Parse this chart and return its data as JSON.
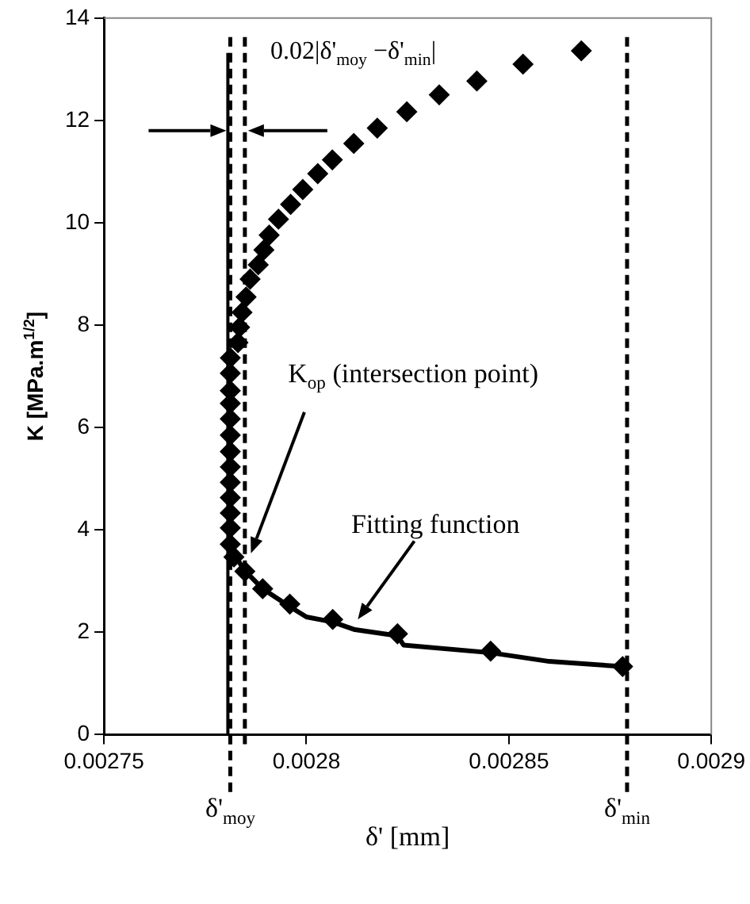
{
  "chart_data": {
    "type": "scatter",
    "xlabel": "δ' [mm]",
    "ylabel": "K [MPa.m$^{1/2}$]",
    "xlim": [
      0.00275,
      0.0029
    ],
    "xticks": [
      0.00275,
      0.0028,
      0.00285,
      0.0029
    ],
    "ylim": [
      0,
      14
    ],
    "yticks": [
      0,
      2,
      4,
      6,
      8,
      10,
      12,
      14
    ],
    "grid": false,
    "legend": false,
    "series": [
      {
        "marker": "diamond",
        "color": "#000000",
        "x": [
          0.0028679,
          0.0028535,
          0.0028421,
          0.0028328,
          0.0028248,
          0.0028175,
          0.0028117,
          0.0028064,
          0.0028028,
          0.0027991,
          0.0027961,
          0.0027931,
          0.0027908,
          0.0027895,
          0.0027881,
          0.0027861,
          0.0027851,
          0.0027841,
          0.0027835,
          0.0027831,
          0.0027812,
          0.0027812,
          0.0027812,
          0.0027812,
          0.0027812,
          0.0027812,
          0.0027812,
          0.0027812,
          0.0027812,
          0.0027812,
          0.0027812,
          0.0027812,
          0.0027812,
          0.0027821,
          0.0027848,
          0.0027892,
          0.0027959,
          0.0028065,
          0.0028225,
          0.0028455,
          0.0028781
        ],
        "values": [
          13.36,
          13.1,
          12.77,
          12.5,
          12.17,
          11.85,
          11.55,
          11.23,
          10.96,
          10.65,
          10.36,
          10.07,
          9.76,
          9.47,
          9.18,
          8.9,
          8.55,
          8.25,
          7.96,
          7.66,
          7.36,
          7.06,
          6.72,
          6.47,
          6.17,
          5.85,
          5.53,
          5.23,
          4.93,
          4.63,
          4.33,
          4.04,
          3.72,
          3.47,
          3.19,
          2.85,
          2.55,
          2.25,
          1.97,
          1.63,
          1.33
        ]
      },
      {
        "type": "line",
        "marker": "none",
        "line_style": "solid",
        "color": "#000000",
        "x": [
          0.0027815,
          0.0027848,
          0.0027892,
          0.0027959,
          0.0028,
          0.0028065,
          0.002812,
          0.0028225,
          0.002824,
          0.0028455,
          0.00286,
          0.0028781
        ],
        "values": [
          3.6,
          3.2,
          2.85,
          2.5,
          2.3,
          2.2,
          2.05,
          1.93,
          1.75,
          1.6,
          1.43,
          1.33
        ]
      }
    ],
    "ref_lines": [
      {
        "axis": "x",
        "value": 0.0027812,
        "label": "δ'$_{moy}$",
        "line_style": "dashed",
        "color": "#000000"
      },
      {
        "axis": "x",
        "value": 0.0027848,
        "line_style": "dashed",
        "color": "#000000"
      },
      {
        "axis": "x",
        "value": 0.0028792,
        "label": "δ'$_{min}$",
        "line_style": "dashed",
        "color": "#000000"
      },
      {
        "axis": "x",
        "value": 0.0027806,
        "line_style": "solid",
        "color": "#000000"
      }
    ],
    "annotations": [
      "0.02|δ'$_{moy}$ −δ'$_{min}$|",
      "K$_{op}$ (intersection point)",
      "Fitting function"
    ]
  }
}
